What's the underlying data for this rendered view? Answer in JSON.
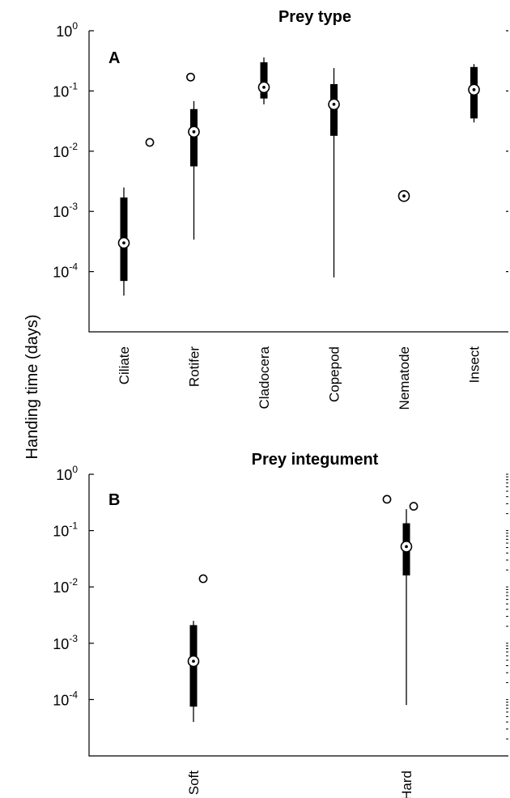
{
  "ylabel": "Handing time (days)",
  "chart_data": [
    {
      "type": "box",
      "panel_label": "A",
      "title": "Prey type",
      "ylabel": "Handing time (days)",
      "yscale": "log",
      "ylim": [
        1e-05,
        1
      ],
      "yticks": [
        {
          "value": 1,
          "base": "10",
          "exp": "0"
        },
        {
          "value": 0.1,
          "base": "10",
          "exp": "-1"
        },
        {
          "value": 0.01,
          "base": "10",
          "exp": "-2"
        },
        {
          "value": 0.001,
          "base": "10",
          "exp": "-3"
        },
        {
          "value": 0.0001,
          "base": "10",
          "exp": "-4"
        }
      ],
      "categories": [
        "Ciliate",
        "Rotifer",
        "Cladocera",
        "Copepod",
        "Nematode",
        "Insect"
      ],
      "boxes": [
        {
          "category": "Ciliate",
          "whisker_low": 4e-05,
          "q1": 7e-05,
          "median": 0.0003,
          "q3": 0.0017,
          "whisker_high": 0.0025,
          "outliers": [
            0.014
          ]
        },
        {
          "category": "Rotifer",
          "whisker_low": 0.00034,
          "q1": 0.0056,
          "median": 0.021,
          "q3": 0.05,
          "whisker_high": 0.068,
          "outliers": [
            0.17
          ]
        },
        {
          "category": "Cladocera",
          "whisker_low": 0.06,
          "q1": 0.075,
          "median": 0.115,
          "q3": 0.3,
          "whisker_high": 0.36,
          "outliers": []
        },
        {
          "category": "Copepod",
          "whisker_low": 8e-05,
          "q1": 0.018,
          "median": 0.06,
          "q3": 0.13,
          "whisker_high": 0.24,
          "outliers": []
        },
        {
          "category": "Nematode",
          "whisker_low": 0.0018,
          "q1": 0.0018,
          "median": 0.0018,
          "q3": 0.0018,
          "whisker_high": 0.0018,
          "outliers": []
        },
        {
          "category": "Insect",
          "whisker_low": 0.03,
          "q1": 0.035,
          "median": 0.105,
          "q3": 0.25,
          "whisker_high": 0.28,
          "outliers": []
        }
      ]
    },
    {
      "type": "box",
      "panel_label": "B",
      "title": "Prey integument",
      "ylabel": "Handing time (days)",
      "yscale": "log",
      "ylim": [
        1e-05,
        1
      ],
      "yticks": [
        {
          "value": 1,
          "base": "10",
          "exp": "0"
        },
        {
          "value": 0.1,
          "base": "10",
          "exp": "-1"
        },
        {
          "value": 0.01,
          "base": "10",
          "exp": "-2"
        },
        {
          "value": 0.001,
          "base": "10",
          "exp": "-3"
        },
        {
          "value": 0.0001,
          "base": "10",
          "exp": "-4"
        }
      ],
      "categories": [
        "Soft",
        "Hard"
      ],
      "boxes": [
        {
          "category": "Soft",
          "whisker_low": 4e-05,
          "q1": 7.5e-05,
          "median": 0.00048,
          "q3": 0.0021,
          "whisker_high": 0.0025,
          "outliers": [
            0.014
          ]
        },
        {
          "category": "Hard",
          "whisker_low": 8e-05,
          "q1": 0.016,
          "median": 0.052,
          "q3": 0.135,
          "whisker_high": 0.24,
          "outliers": [
            0.36,
            0.27
          ]
        }
      ]
    }
  ]
}
